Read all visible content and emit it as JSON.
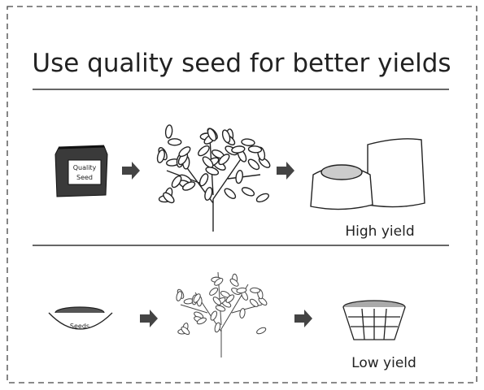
{
  "title": "Use quality seed for better yields",
  "high_row": {
    "bag_label_line1": "Quality",
    "bag_label_line2": "Seed",
    "result": "High yield"
  },
  "low_row": {
    "bowl_label": "Seeds",
    "result": "Low yield"
  }
}
